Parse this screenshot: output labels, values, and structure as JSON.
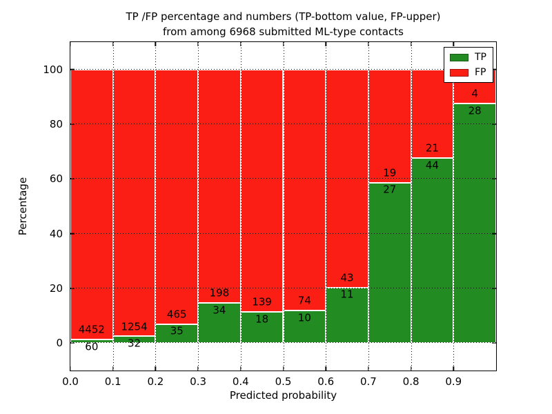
{
  "chart_data": {
    "type": "bar",
    "stacked": true,
    "normalized_to": 100,
    "title_lines": [
      "TP /FP percentage and numbers (TP-bottom value, FP-upper)",
      "from among 6968 submitted ML-type contacts"
    ],
    "xlabel": "Predicted probability",
    "ylabel": "Percentage",
    "xlim": [
      0.0,
      1.0
    ],
    "ylim": [
      -10,
      110
    ],
    "bin_width": 0.1,
    "bin_starts": [
      0.0,
      0.1,
      0.2,
      0.3,
      0.4,
      0.5,
      0.6,
      0.7,
      0.8,
      0.9
    ],
    "x_tick_labels": [
      "0.0",
      "0.1",
      "0.2",
      "0.3",
      "0.4",
      "0.5",
      "0.6",
      "0.7",
      "0.8",
      "0.9"
    ],
    "y_ticks": [
      0,
      20,
      40,
      60,
      80,
      100
    ],
    "y_tick_labels": [
      "0",
      "20",
      "40",
      "60",
      "80",
      "100"
    ],
    "grid": "dotted black, x and y, drawn over bars",
    "series": [
      {
        "name": "TP",
        "color": "#228b22",
        "position": "bottom",
        "counts": [
          60,
          32,
          35,
          34,
          18,
          10,
          11,
          27,
          44,
          28
        ]
      },
      {
        "name": "FP",
        "color": "#fa1e14",
        "position": "top",
        "counts": [
          4452,
          1254,
          465,
          198,
          139,
          74,
          43,
          19,
          21,
          4
        ]
      }
    ],
    "tp_percent_of_bin": [
      1.33,
      2.49,
      7.0,
      14.66,
      11.46,
      11.9,
      20.37,
      58.7,
      67.69,
      87.5
    ],
    "legend": {
      "position": "upper right",
      "entries": [
        "TP",
        "FP"
      ]
    }
  }
}
